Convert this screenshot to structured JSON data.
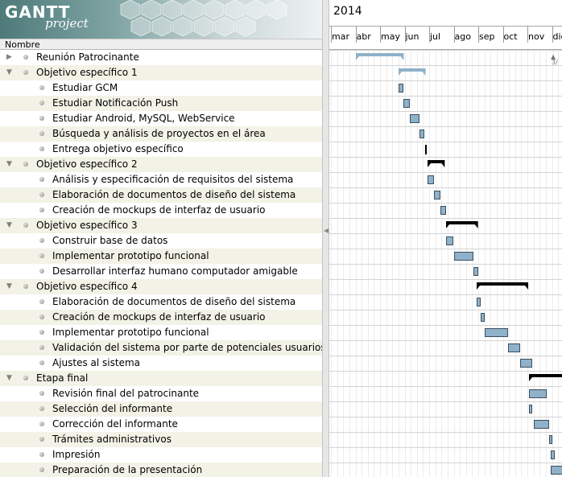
{
  "app": {
    "logo_main": "GANTT",
    "logo_sub": "project"
  },
  "tree": {
    "header_name": "Nombre",
    "rows": [
      {
        "label": "Reunión Patrocinante",
        "level": 0,
        "toggle": "▶"
      },
      {
        "label": "Objetivo específico 1",
        "level": 0,
        "toggle": "▼"
      },
      {
        "label": "Estudiar GCM",
        "level": 1,
        "toggle": ""
      },
      {
        "label": "Estudiar Notificación Push",
        "level": 1,
        "toggle": ""
      },
      {
        "label": "Estudiar Android, MySQL, WebService",
        "level": 1,
        "toggle": ""
      },
      {
        "label": "Búsqueda y análisis de proyectos en el área",
        "level": 1,
        "toggle": ""
      },
      {
        "label": "Entrega objetivo específico",
        "level": 1,
        "toggle": ""
      },
      {
        "label": "Objetivo específico 2",
        "level": 0,
        "toggle": "▼"
      },
      {
        "label": "Análisis y especificación de requisitos del sistema",
        "level": 1,
        "toggle": ""
      },
      {
        "label": "Elaboración de documentos de diseño del sistema",
        "level": 1,
        "toggle": ""
      },
      {
        "label": "Creación de mockups de interfaz de usuario",
        "level": 1,
        "toggle": ""
      },
      {
        "label": "Objetivo específico 3",
        "level": 0,
        "toggle": "▼"
      },
      {
        "label": "Construir base de datos",
        "level": 1,
        "toggle": ""
      },
      {
        "label": "Implementar prototipo funcional",
        "level": 1,
        "toggle": ""
      },
      {
        "label": "Desarrollar interfaz humano computador amigable",
        "level": 1,
        "toggle": ""
      },
      {
        "label": "Objetivo específico 4",
        "level": 0,
        "toggle": "▼"
      },
      {
        "label": "Elaboración de documentos de diseño del sistema",
        "level": 1,
        "toggle": ""
      },
      {
        "label": "Creación de mockups de interfaz de usuario",
        "level": 1,
        "toggle": ""
      },
      {
        "label": "Implementar prototipo funcional",
        "level": 1,
        "toggle": ""
      },
      {
        "label": "Validación del sistema por parte de potenciales usuarios",
        "level": 1,
        "toggle": ""
      },
      {
        "label": "Ajustes al sistema",
        "level": 1,
        "toggle": ""
      },
      {
        "label": "Etapa final",
        "level": 0,
        "toggle": "▼"
      },
      {
        "label": "Revisión final del patrocinante",
        "level": 1,
        "toggle": ""
      },
      {
        "label": "Selección del informante",
        "level": 1,
        "toggle": ""
      },
      {
        "label": "Corrección del informante",
        "level": 1,
        "toggle": ""
      },
      {
        "label": "Trámites administrativos",
        "level": 1,
        "toggle": ""
      },
      {
        "label": "Impresión",
        "level": 1,
        "toggle": ""
      },
      {
        "label": "Preparación de la presentación",
        "level": 1,
        "toggle": ""
      }
    ]
  },
  "chart": {
    "year": "2014",
    "months": [
      "mar",
      "abr",
      "may",
      "jun",
      "jul",
      "ago",
      "sep",
      "oct",
      "nov",
      "dic"
    ],
    "scroll_indicator": "3/",
    "bar_color": "#8fb1c9",
    "summary_color": "#000000",
    "tasks": [
      {
        "type": "summary",
        "start": 1.0,
        "end": 2.95,
        "style": "collapsed"
      },
      {
        "type": "summary",
        "start": 2.75,
        "end": 3.85,
        "style": "collapsed"
      },
      {
        "type": "task",
        "start": 2.75,
        "end": 2.95
      },
      {
        "type": "task",
        "start": 2.95,
        "end": 3.2
      },
      {
        "type": "task",
        "start": 3.2,
        "end": 3.6
      },
      {
        "type": "task",
        "start": 3.6,
        "end": 3.8
      },
      {
        "type": "milestone",
        "start": 3.85,
        "end": 3.85
      },
      {
        "type": "summary",
        "start": 3.95,
        "end": 4.65,
        "style": "expanded"
      },
      {
        "type": "task",
        "start": 3.95,
        "end": 4.2
      },
      {
        "type": "task",
        "start": 4.2,
        "end": 4.45
      },
      {
        "type": "task",
        "start": 4.45,
        "end": 4.7
      },
      {
        "type": "summary",
        "start": 4.7,
        "end": 6.0,
        "style": "expanded"
      },
      {
        "type": "task",
        "start": 4.7,
        "end": 5.0
      },
      {
        "type": "task",
        "start": 5.0,
        "end": 5.8
      },
      {
        "type": "task",
        "start": 5.8,
        "end": 6.0
      },
      {
        "type": "summary",
        "start": 5.95,
        "end": 8.05,
        "style": "expanded"
      },
      {
        "type": "task",
        "start": 5.95,
        "end": 6.1
      },
      {
        "type": "task",
        "start": 6.1,
        "end": 6.25
      },
      {
        "type": "task",
        "start": 6.25,
        "end": 7.2
      },
      {
        "type": "task",
        "start": 7.2,
        "end": 7.7
      },
      {
        "type": "task",
        "start": 7.7,
        "end": 8.2
      },
      {
        "type": "summary",
        "start": 8.05,
        "end": 9.6,
        "style": "expanded"
      },
      {
        "type": "task",
        "start": 8.05,
        "end": 8.8
      },
      {
        "type": "task",
        "start": 8.05,
        "end": 8.2
      },
      {
        "type": "task",
        "start": 8.25,
        "end": 8.9
      },
      {
        "type": "task",
        "start": 8.9,
        "end": 9.0
      },
      {
        "type": "task",
        "start": 8.95,
        "end": 9.1
      },
      {
        "type": "task",
        "start": 8.95,
        "end": 9.6
      }
    ]
  }
}
